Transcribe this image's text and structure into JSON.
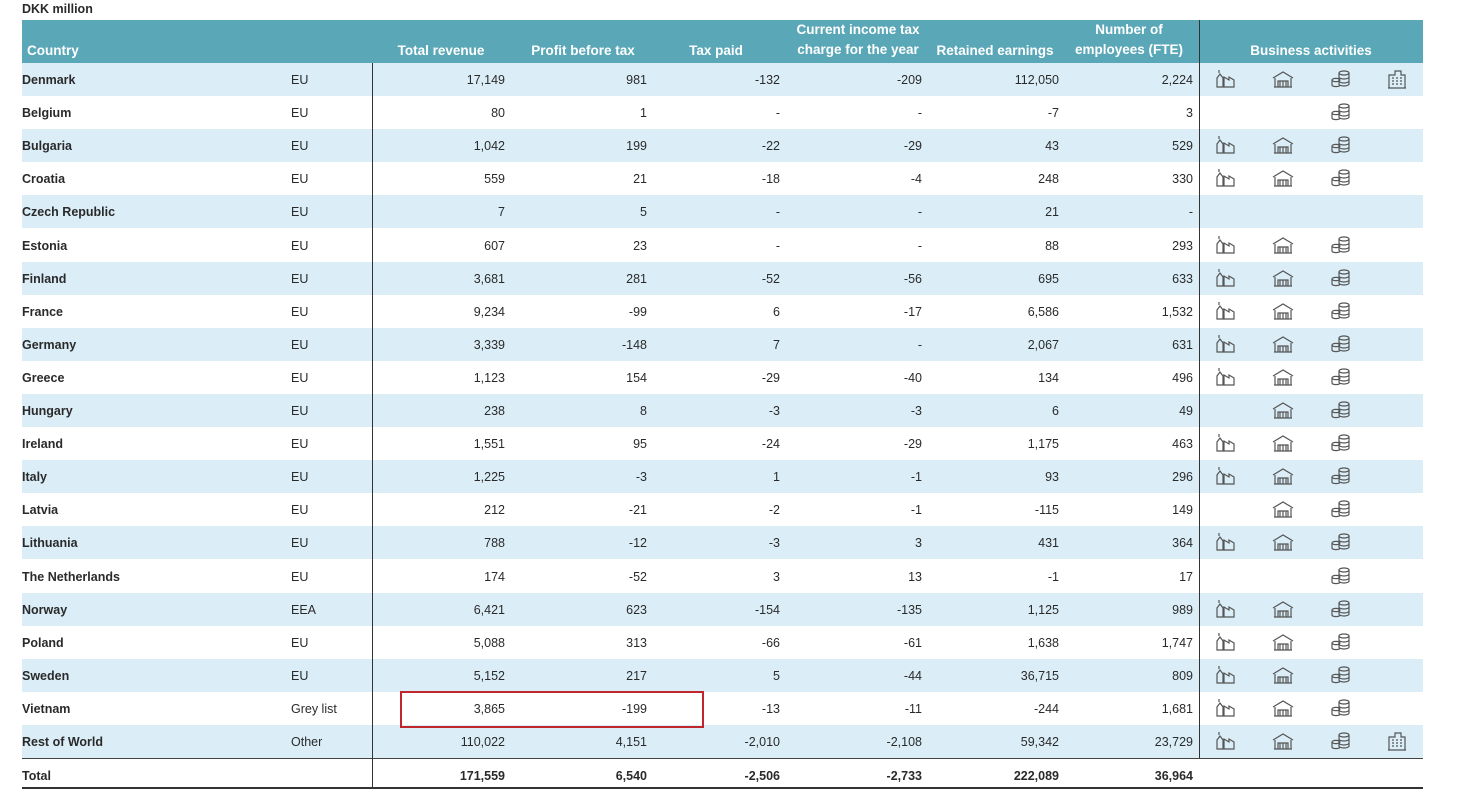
{
  "unit": "DKK million",
  "table": {
    "headers": [
      "Country",
      "Total revenue",
      "Profit before tax",
      "Tax paid",
      "Current income tax charge for the year",
      "Retained earnings",
      "Number of employees (FTE)",
      "Business activities"
    ],
    "rows": [
      {
        "cells": [
          "Denmark",
          "EU",
          "17,149",
          "981",
          "-132",
          "-209",
          "112,050",
          "2,224"
        ],
        "activities": [
          true,
          true,
          true,
          true
        ]
      },
      {
        "cells": [
          "Belgium",
          "EU",
          "80",
          "1",
          "-",
          "-",
          "-7",
          "3"
        ],
        "activities": [
          false,
          false,
          true,
          false
        ]
      },
      {
        "cells": [
          "Bulgaria",
          "EU",
          "1,042",
          "199",
          "-22",
          "-29",
          "43",
          "529"
        ],
        "activities": [
          true,
          true,
          true,
          false
        ]
      },
      {
        "cells": [
          "Croatia",
          "EU",
          "559",
          "21",
          "-18",
          "-4",
          "248",
          "330"
        ],
        "activities": [
          true,
          true,
          true,
          false
        ]
      },
      {
        "cells": [
          "Czech Republic",
          "EU",
          "7",
          "5",
          "-",
          "-",
          "21",
          "-"
        ],
        "activities": [
          false,
          false,
          false,
          false
        ]
      },
      {
        "cells": [
          "Estonia",
          "EU",
          "607",
          "23",
          "-",
          "-",
          "88",
          "293"
        ],
        "activities": [
          true,
          true,
          true,
          false
        ]
      },
      {
        "cells": [
          "Finland",
          "EU",
          "3,681",
          "281",
          "-52",
          "-56",
          "695",
          "633"
        ],
        "activities": [
          true,
          true,
          true,
          false
        ]
      },
      {
        "cells": [
          "France",
          "EU",
          "9,234",
          "-99",
          "6",
          "-17",
          "6,586",
          "1,532"
        ],
        "activities": [
          true,
          true,
          true,
          false
        ]
      },
      {
        "cells": [
          "Germany",
          "EU",
          "3,339",
          "-148",
          "7",
          "-",
          "2,067",
          "631"
        ],
        "activities": [
          true,
          true,
          true,
          false
        ]
      },
      {
        "cells": [
          "Greece",
          "EU",
          "1,123",
          "154",
          "-29",
          "-40",
          "134",
          "496"
        ],
        "activities": [
          true,
          true,
          true,
          false
        ]
      },
      {
        "cells": [
          "Hungary",
          "EU",
          "238",
          "8",
          "-3",
          "-3",
          "6",
          "49"
        ],
        "activities": [
          false,
          true,
          true,
          false
        ]
      },
      {
        "cells": [
          "Ireland",
          "EU",
          "1,551",
          "95",
          "-24",
          "-29",
          "1,175",
          "463"
        ],
        "activities": [
          true,
          true,
          true,
          false
        ]
      },
      {
        "cells": [
          "Italy",
          "EU",
          "1,225",
          "-3",
          "1",
          "-1",
          "93",
          "296"
        ],
        "activities": [
          true,
          true,
          true,
          false
        ]
      },
      {
        "cells": [
          "Latvia",
          "EU",
          "212",
          "-21",
          "-2",
          "-1",
          "-115",
          "149"
        ],
        "activities": [
          false,
          true,
          true,
          false
        ]
      },
      {
        "cells": [
          "Lithuania",
          "EU",
          "788",
          "-12",
          "-3",
          "3",
          "431",
          "364"
        ],
        "activities": [
          true,
          true,
          true,
          false
        ]
      },
      {
        "cells": [
          "The Netherlands",
          "EU",
          "174",
          "-52",
          "3",
          "13",
          "-1",
          "17"
        ],
        "activities": [
          false,
          false,
          true,
          false
        ]
      },
      {
        "cells": [
          "Norway",
          "EEA",
          "6,421",
          "623",
          "-154",
          "-135",
          "1,125",
          "989"
        ],
        "activities": [
          true,
          true,
          true,
          false
        ]
      },
      {
        "cells": [
          "Poland",
          "EU",
          "5,088",
          "313",
          "-66",
          "-61",
          "1,638",
          "1,747"
        ],
        "activities": [
          true,
          true,
          true,
          false
        ]
      },
      {
        "cells": [
          "Sweden",
          "EU",
          "5,152",
          "217",
          "5",
          "-44",
          "36,715",
          "809"
        ],
        "activities": [
          true,
          true,
          true,
          false
        ]
      },
      {
        "cells": [
          "Vietnam",
          "Grey list",
          "3,865",
          "-199",
          "-13",
          "-11",
          "-244",
          "1,681"
        ],
        "activities": [
          true,
          true,
          true,
          false
        ]
      },
      {
        "cells": [
          "Rest of World",
          "Other",
          "110,022",
          "4,151",
          "-2,010",
          "-2,108",
          "59,342",
          "23,729"
        ],
        "activities": [
          true,
          true,
          true,
          true
        ]
      }
    ],
    "total": [
      "Total",
      "171,559",
      "6,540",
      "-2,506",
      "-2,733",
      "222,089",
      "36,964"
    ]
  }
}
